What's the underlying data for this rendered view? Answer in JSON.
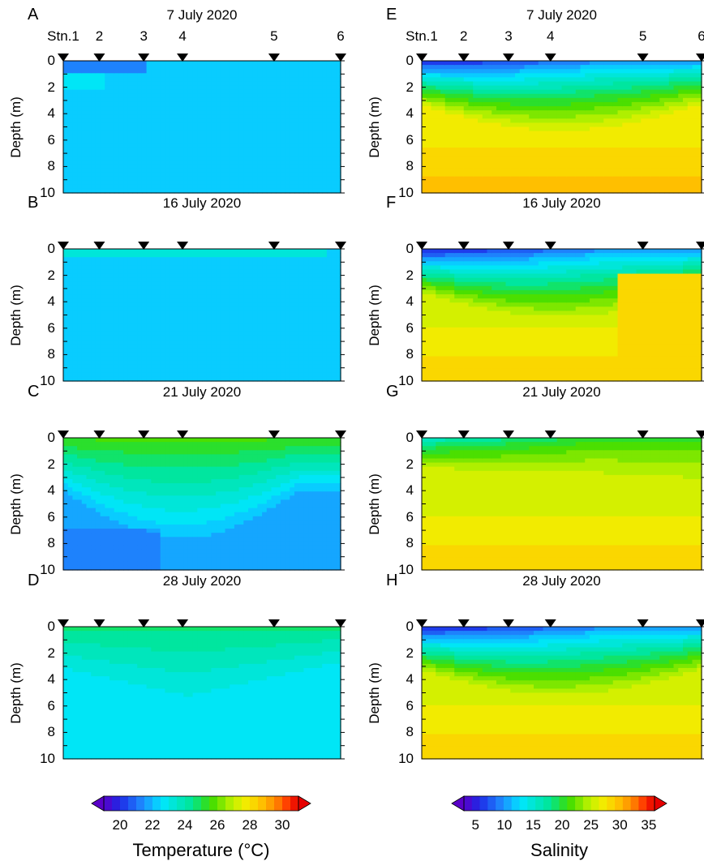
{
  "chart_data": [
    {
      "panel": "A",
      "title": "7 July 2020",
      "type": "heatmap",
      "variable": "temperature",
      "ylabel": "Depth (m)",
      "ylim": [
        0,
        10
      ],
      "yticks": [
        "0",
        "2",
        "4",
        "6",
        "8",
        "10"
      ],
      "stations": [
        "Stn.1",
        "2",
        "3",
        "4",
        "5",
        "6"
      ],
      "station_x": [
        0,
        0.13,
        0.29,
        0.43,
        0.76,
        1.0
      ],
      "show_station_labels": true,
      "base": 22.4,
      "top": [
        {
          "x": 0,
          "z": 20.6
        },
        {
          "x": 0.3,
          "z": 21.2
        }
      ],
      "notes": "uniform ~22 C with cooler lens at surface near Stn.1-3"
    },
    {
      "panel": "B",
      "title": "16 July 2020",
      "type": "heatmap",
      "variable": "temperature",
      "ylabel": "Depth (m)",
      "ylim": [
        0,
        10
      ],
      "yticks": [
        "0",
        "2",
        "4",
        "6",
        "8",
        "10"
      ],
      "stations": [
        "",
        "",
        "",
        "",
        "",
        ""
      ],
      "station_x": [
        0,
        0.13,
        0.29,
        0.43,
        0.76,
        1.0
      ],
      "show_station_labels": false,
      "base": 22.4,
      "surface_layer": {
        "value": 23.0,
        "depth_m": 1.0
      }
    },
    {
      "panel": "C",
      "title": "21 July 2020",
      "type": "heatmap",
      "variable": "temperature",
      "ylabel": "Depth (m)",
      "ylim": [
        0,
        10
      ],
      "yticks": [
        "0",
        "2",
        "4",
        "6",
        "8",
        "10"
      ],
      "stations": [
        "",
        "",
        "",
        "",
        "",
        ""
      ],
      "station_x": [
        0,
        0.13,
        0.29,
        0.43,
        0.76,
        1.0
      ],
      "show_station_labels": false,
      "surface": 25.5,
      "bottom": 22.0
    },
    {
      "panel": "D",
      "title": "28 July 2020",
      "type": "heatmap",
      "variable": "temperature",
      "ylabel": "Depth (m)",
      "ylim": [
        0,
        10
      ],
      "yticks": [
        "0",
        "2",
        "4",
        "6",
        "8",
        "10"
      ],
      "stations": [
        "",
        "",
        "",
        "",
        "",
        ""
      ],
      "station_x": [
        0,
        0.13,
        0.29,
        0.43,
        0.76,
        1.0
      ],
      "show_station_labels": false,
      "surface": 24.5,
      "bottom": 22.5
    },
    {
      "panel": "E",
      "title": "7 July 2020",
      "type": "heatmap",
      "variable": "salinity",
      "ylabel": "Depth (m)",
      "ylim": [
        0,
        10
      ],
      "yticks": [
        "0",
        "2",
        "4",
        "6",
        "8",
        "10"
      ],
      "stations": [
        "Stn.1",
        "2",
        "3",
        "4",
        "5",
        "6"
      ],
      "station_x": [
        0,
        0.15,
        0.31,
        0.46,
        0.79,
        1.0
      ],
      "show_station_labels": true,
      "surface_min": 4,
      "bottom": 31
    },
    {
      "panel": "F",
      "title": "16 July 2020",
      "type": "heatmap",
      "variable": "salinity",
      "ylabel": "Depth (m)",
      "ylim": [
        0,
        10
      ],
      "yticks": [
        "0",
        "2",
        "4",
        "6",
        "8",
        "10"
      ],
      "stations": [
        "",
        "",
        "",
        "",
        "",
        ""
      ],
      "station_x": [
        0,
        0.15,
        0.31,
        0.46,
        0.79,
        1.0
      ],
      "show_station_labels": false,
      "surface_min": 4,
      "bottom": 30
    },
    {
      "panel": "G",
      "title": "21 July 2020",
      "type": "heatmap",
      "variable": "salinity",
      "ylabel": "Depth (m)",
      "ylim": [
        0,
        10
      ],
      "yticks": [
        "0",
        "2",
        "4",
        "6",
        "8",
        "10"
      ],
      "stations": [
        "",
        "",
        "",
        "",
        "",
        ""
      ],
      "station_x": [
        0,
        0.15,
        0.31,
        0.46,
        0.79,
        1.0
      ],
      "show_station_labels": false,
      "surface_min": 15,
      "bottom": 30
    },
    {
      "panel": "H",
      "title": "28 July 2020",
      "type": "heatmap",
      "variable": "salinity",
      "ylabel": "Depth (m)",
      "ylim": [
        0,
        10
      ],
      "yticks": [
        "0",
        "2",
        "4",
        "6",
        "8",
        "10"
      ],
      "stations": [
        "",
        "",
        "",
        "",
        "",
        ""
      ],
      "station_x": [
        0,
        0.15,
        0.31,
        0.46,
        0.79,
        1.0
      ],
      "show_station_labels": false,
      "surface_min": 4,
      "bottom": 30
    }
  ],
  "colorbars": {
    "temperature": {
      "title": "Temperature (°C)",
      "range": [
        19,
        31
      ],
      "ticks": [
        "20",
        "22",
        "24",
        "26",
        "28",
        "30"
      ],
      "tick_values": [
        20,
        22,
        24,
        26,
        28,
        30
      ]
    },
    "salinity": {
      "title": "Salinity",
      "range": [
        3,
        36
      ],
      "ticks": [
        "5",
        "10",
        "15",
        "20",
        "25",
        "30",
        "35"
      ],
      "tick_values": [
        5,
        10,
        15,
        20,
        25,
        30,
        35
      ]
    }
  }
}
